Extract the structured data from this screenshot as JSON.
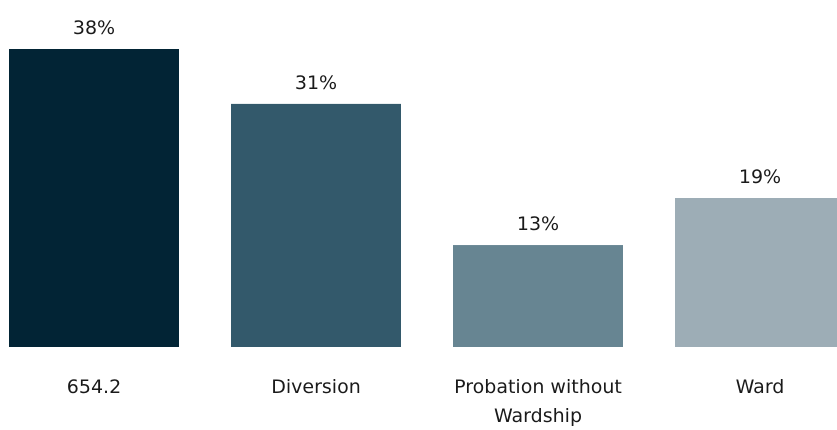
{
  "chart_data": {
    "type": "bar",
    "title": "",
    "xlabel": "",
    "ylabel": "",
    "ylim": [
      0,
      38
    ],
    "grid": false,
    "legend": "none",
    "categories": [
      "654.2",
      "Diversion",
      "Probation without Wardship",
      "Ward"
    ],
    "category_lines": [
      [
        "654.2"
      ],
      [
        "Diversion"
      ],
      [
        "Probation without",
        "Wardship"
      ],
      [
        "Ward"
      ]
    ],
    "values": [
      38,
      31,
      13,
      19
    ],
    "value_labels": [
      "38%",
      "31%",
      "13%",
      "19%"
    ],
    "colors": [
      "#022435",
      "#33596b",
      "#678592",
      "#9dadb6"
    ]
  }
}
